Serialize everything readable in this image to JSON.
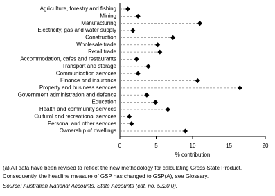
{
  "chart_data": {
    "type": "dot",
    "categories": [
      "Agriculture, forestry and fishing",
      "Mining",
      "Manufacturing",
      "Electricity, gas and water supply",
      "Construction",
      "Wholesale trade",
      "Retail trade",
      "Accommodation, cafes and restaurants",
      "Transport and storage",
      "Communication services",
      "Finance and insurance",
      "Property and business services",
      "Government administration and defence",
      "Education",
      "Health and community services",
      "Cultural and recreational services",
      "Personal and other services",
      "Ownership of dwellings"
    ],
    "values": [
      1.1,
      2.5,
      11.0,
      1.8,
      7.3,
      5.2,
      5.5,
      2.3,
      3.9,
      2.5,
      10.7,
      16.5,
      3.7,
      4.9,
      6.6,
      1.3,
      1.6,
      9.0
    ],
    "color": "#000000",
    "xlabel": "% contribution",
    "xlim": [
      0,
      20
    ],
    "xticks": [
      0,
      5,
      10,
      15,
      20
    ],
    "footnotes": [
      "(a) All data have been revised to reflect the new methodology for calculating Gross State Product.",
      "Consequently, the headline measure of GSP has changed to GSP(A), see Glossary.",
      "Source: Australian National Accounts, State Accounts (cat. no. 5220.0)."
    ]
  }
}
